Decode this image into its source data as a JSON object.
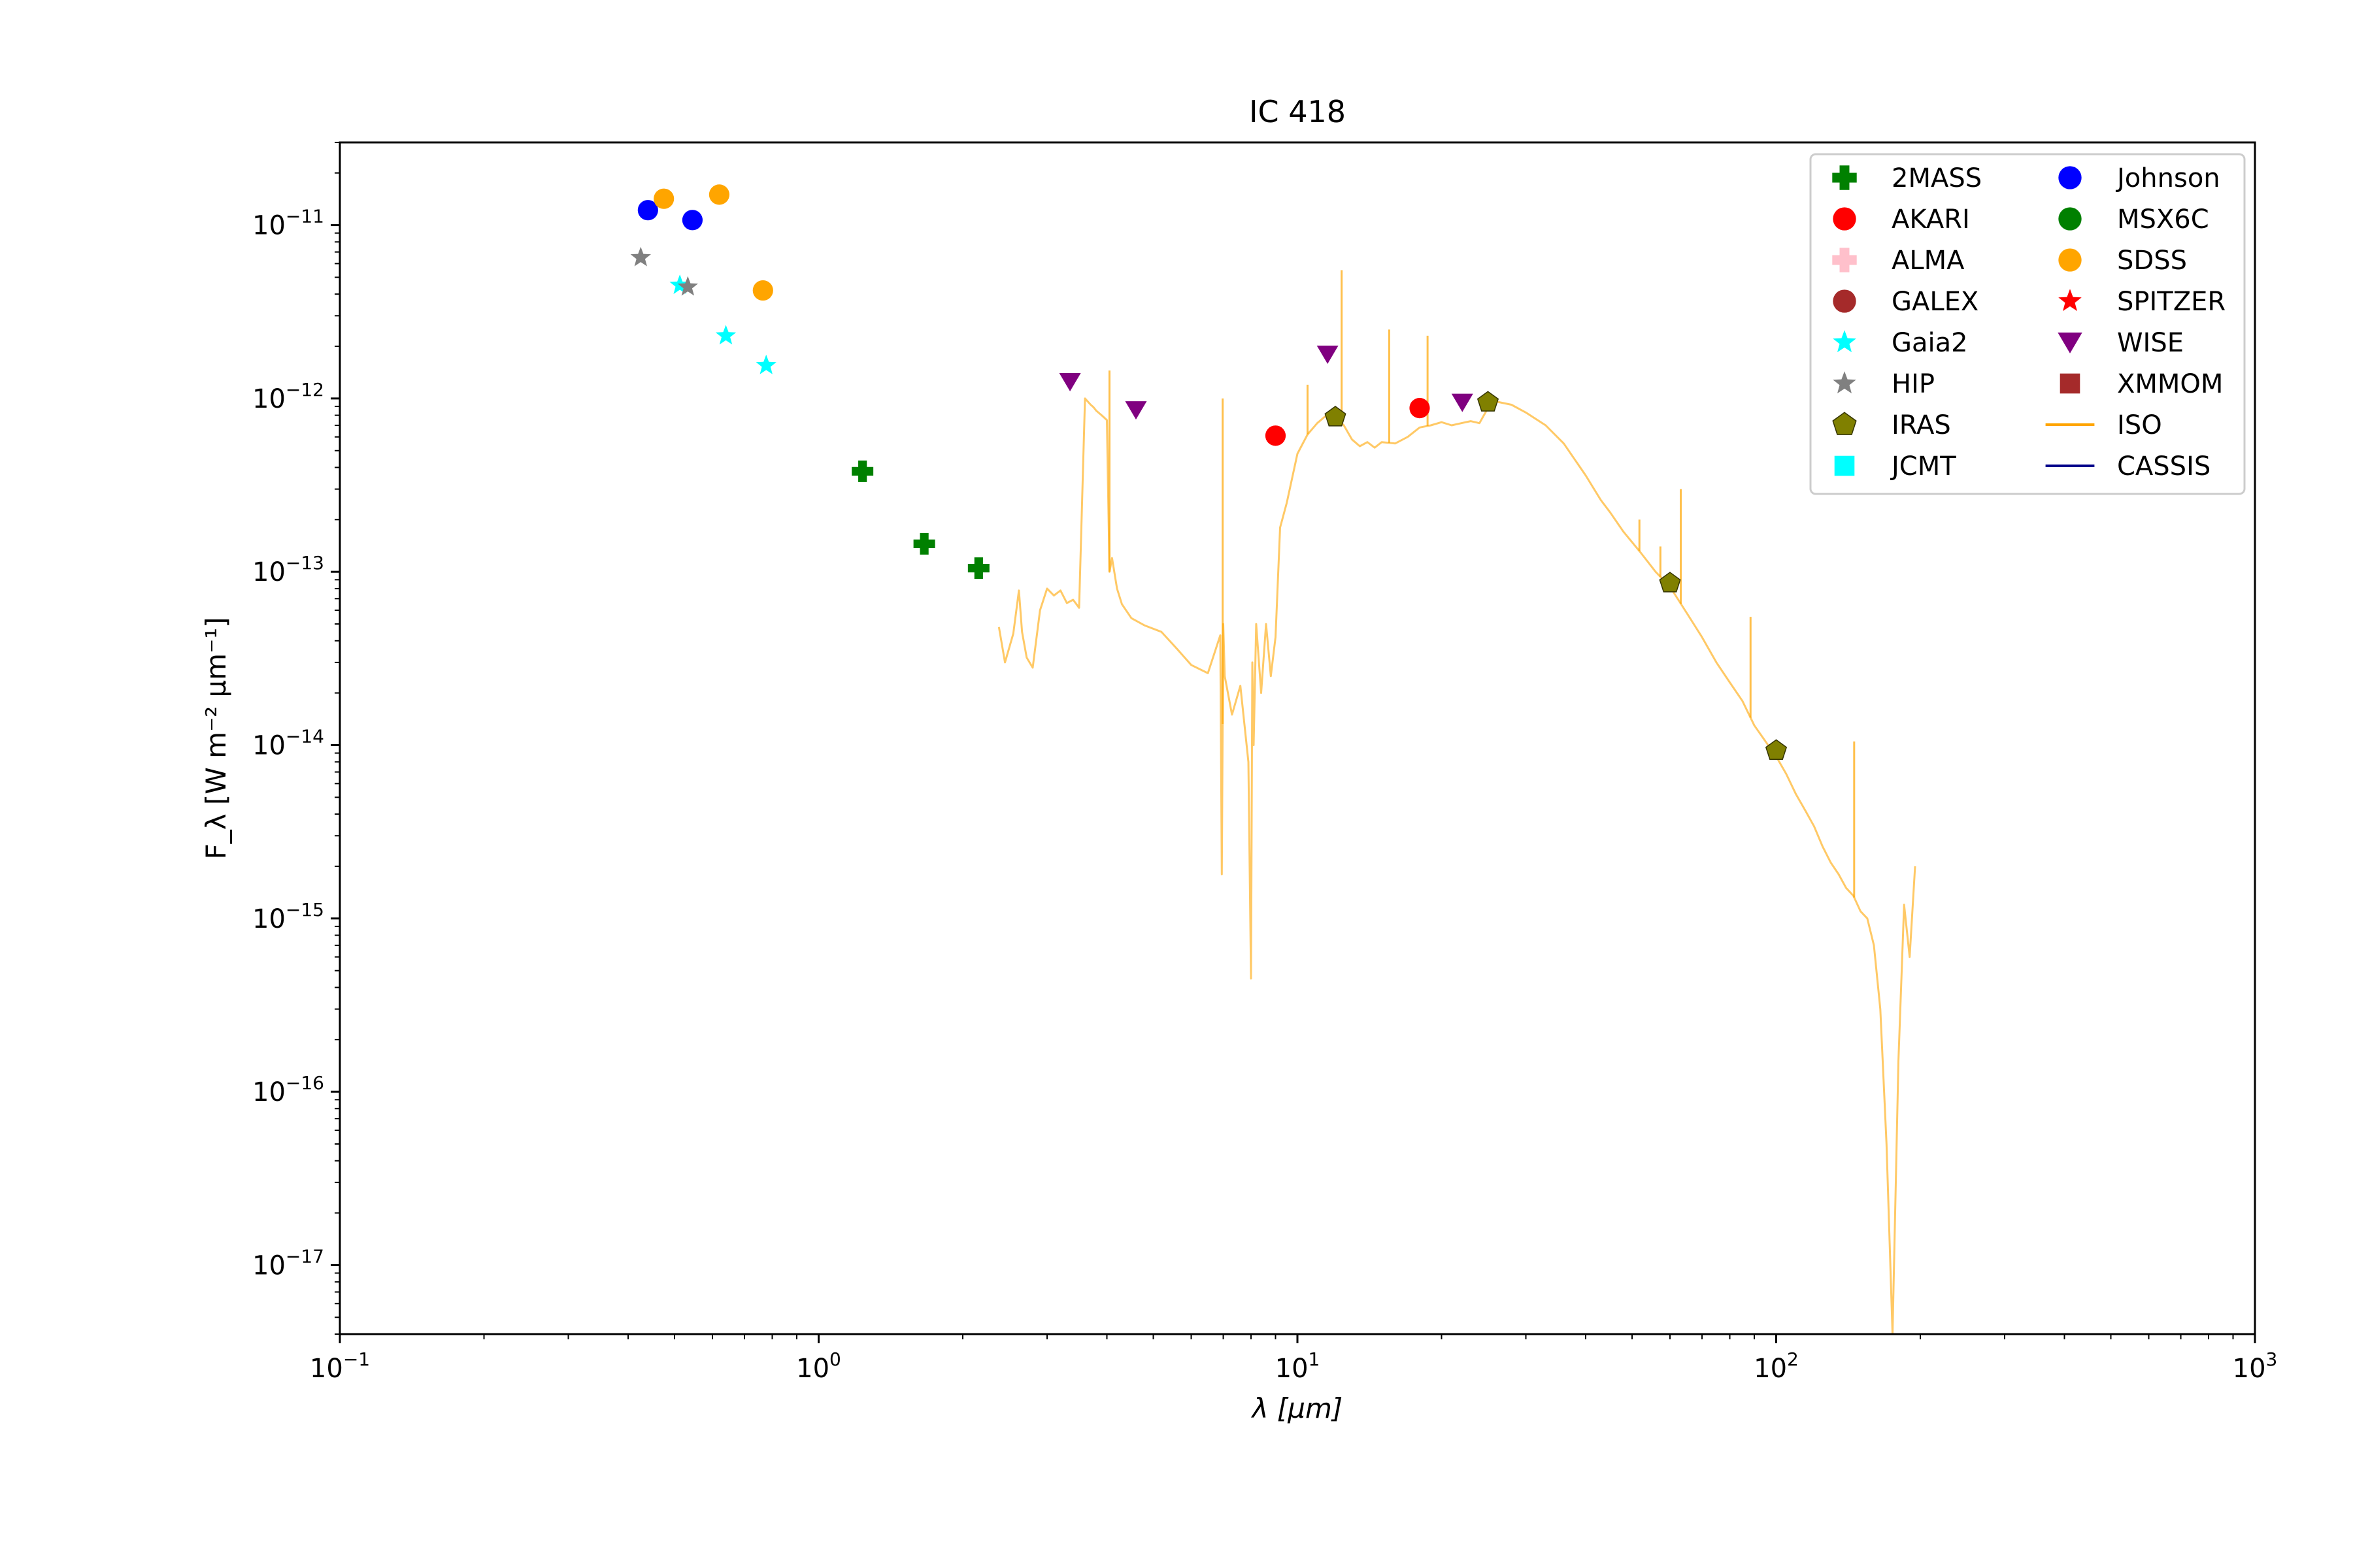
{
  "chart_data": {
    "type": "scatter",
    "title": "IC 418",
    "xlabel_text": "λ [μm]",
    "ylabel_text": "F_λ [W m⁻² μm⁻¹]",
    "x_scale": "log",
    "y_scale": "log",
    "xlim": [
      0.1,
      1000
    ],
    "ylim": [
      4e-18,
      3e-11
    ],
    "grid": false,
    "legend_position": "top-right",
    "x_ticks": [
      {
        "value": 0.1,
        "base": "10",
        "exp": "−1"
      },
      {
        "value": 1,
        "base": "10",
        "exp": "0"
      },
      {
        "value": 10,
        "base": "10",
        "exp": "1"
      },
      {
        "value": 100,
        "base": "10",
        "exp": "2"
      },
      {
        "value": 1000,
        "base": "10",
        "exp": "3"
      }
    ],
    "y_ticks": [
      {
        "value": 1e-17,
        "base": "10",
        "exp": "−17"
      },
      {
        "value": 1e-16,
        "base": "10",
        "exp": "−16"
      },
      {
        "value": 1e-15,
        "base": "10",
        "exp": "−15"
      },
      {
        "value": 1e-14,
        "base": "10",
        "exp": "−14"
      },
      {
        "value": 1e-13,
        "base": "10",
        "exp": "−13"
      },
      {
        "value": 1e-12,
        "base": "10",
        "exp": "−12"
      },
      {
        "value": 1e-11,
        "base": "10",
        "exp": "−11"
      }
    ],
    "legend": [
      {
        "label": "2MASS",
        "color": "#008000",
        "marker": "plus"
      },
      {
        "label": "Johnson",
        "color": "#0000ff",
        "marker": "circle"
      },
      {
        "label": "AKARI",
        "color": "#ff0000",
        "marker": "circle"
      },
      {
        "label": "MSX6C",
        "color": "#008000",
        "marker": "circle"
      },
      {
        "label": "ALMA",
        "color": "#ffc0cb",
        "marker": "plus"
      },
      {
        "label": "SDSS",
        "color": "#ffa500",
        "marker": "circle"
      },
      {
        "label": "GALEX",
        "color": "#a52a2a",
        "marker": "circle"
      },
      {
        "label": "SPITZER",
        "color": "#ff0000",
        "marker": "star"
      },
      {
        "label": "Gaia2",
        "color": "#00ffff",
        "marker": "star"
      },
      {
        "label": "WISE",
        "color": "#800080",
        "marker": "triangle-down"
      },
      {
        "label": "HIP",
        "color": "#808080",
        "marker": "star"
      },
      {
        "label": "XMMOM",
        "color": "#a52a2a",
        "marker": "square"
      },
      {
        "label": "IRAS",
        "color": "#808000",
        "marker": "pentagon"
      },
      {
        "label": "ISO",
        "color": "#ffa500",
        "marker": "line"
      },
      {
        "label": "JCMT",
        "color": "#00ffff",
        "marker": "square"
      },
      {
        "label": "CASSIS",
        "color": "#00008b",
        "marker": "line"
      }
    ],
    "series": [
      {
        "name": "2MASS",
        "marker": "plus",
        "color": "#008000",
        "points": [
          {
            "x": 1.235,
            "y": 3.8e-13
          },
          {
            "x": 1.662,
            "y": 1.45e-13
          },
          {
            "x": 2.159,
            "y": 1.05e-13
          }
        ]
      },
      {
        "name": "Johnson",
        "marker": "circle",
        "color": "#0000ff",
        "points": [
          {
            "x": 0.44,
            "y": 1.22e-11
          },
          {
            "x": 0.545,
            "y": 1.07e-11
          }
        ]
      },
      {
        "name": "AKARI",
        "marker": "circle",
        "color": "#ff0000",
        "points": [
          {
            "x": 9.0,
            "y": 6.1e-13
          },
          {
            "x": 18.0,
            "y": 8.8e-13
          }
        ]
      },
      {
        "name": "SDSS",
        "marker": "circle",
        "color": "#ffa500",
        "points": [
          {
            "x": 0.475,
            "y": 1.42e-11
          },
          {
            "x": 0.62,
            "y": 1.5e-11
          },
          {
            "x": 0.765,
            "y": 4.2e-12
          }
        ]
      },
      {
        "name": "Gaia2",
        "marker": "star",
        "color": "#00ffff",
        "points": [
          {
            "x": 0.513,
            "y": 4.5e-12
          },
          {
            "x": 0.64,
            "y": 2.3e-12
          },
          {
            "x": 0.777,
            "y": 1.55e-12
          }
        ]
      },
      {
        "name": "HIP",
        "marker": "star",
        "color": "#808080",
        "points": [
          {
            "x": 0.425,
            "y": 6.5e-12
          },
          {
            "x": 0.533,
            "y": 4.4e-12
          }
        ]
      },
      {
        "name": "WISE",
        "marker": "triangle-down",
        "color": "#800080",
        "points": [
          {
            "x": 3.35,
            "y": 1.25e-12
          },
          {
            "x": 4.6,
            "y": 8.6e-13
          },
          {
            "x": 11.56,
            "y": 1.8e-12
          },
          {
            "x": 22.1,
            "y": 9.5e-13
          }
        ]
      },
      {
        "name": "IRAS",
        "marker": "pentagon",
        "color": "#808000",
        "points": [
          {
            "x": 12.0,
            "y": 7.8e-13
          },
          {
            "x": 25.0,
            "y": 9.5e-13
          },
          {
            "x": 60.0,
            "y": 8.6e-14
          },
          {
            "x": 100.0,
            "y": 9.3e-15
          }
        ]
      }
    ],
    "iso_spectrum": {
      "name": "ISO",
      "color": "#ffa500",
      "x": [
        2.38,
        2.45,
        2.55,
        2.62,
        2.66,
        2.72,
        2.8,
        2.9,
        3.0,
        3.1,
        3.2,
        3.3,
        3.4,
        3.5,
        3.6,
        3.7,
        3.75,
        3.8,
        3.9,
        4.0,
        4.05,
        4.1,
        4.2,
        4.3,
        4.5,
        4.8,
        5.2,
        5.6,
        6.0,
        6.5,
        6.9,
        6.95,
        7.0,
        7.05,
        7.3,
        7.6,
        7.9,
        8.0,
        8.05,
        8.1,
        8.2,
        8.4,
        8.6,
        8.8,
        9.0,
        9.2,
        9.5,
        10.0,
        10.5,
        11.0,
        11.5,
        12.0,
        12.5,
        13.0,
        13.5,
        14.0,
        14.5,
        15.0,
        16.0,
        17.0,
        18.0,
        19.0,
        20.0,
        21.0,
        22.0,
        23.0,
        24.0,
        25.0,
        26.0,
        28.0,
        30.0,
        33.0,
        36.0,
        40.0,
        43.0,
        45.0,
        48.0,
        52.0,
        56.0,
        60.0,
        65.0,
        70.0,
        75.0,
        80.0,
        85.0,
        90.0,
        95.0,
        100.0,
        105.0,
        110.0,
        115.0,
        120.0,
        125.0,
        130.0,
        135.0,
        140.0,
        145.0,
        150.0,
        155.0,
        160.0,
        165.0,
        170.0,
        175.0,
        180.0,
        185.0,
        190.0,
        195.0
      ],
      "y": [
        4.8e-14,
        3e-14,
        4.4e-14,
        7.8e-14,
        4.5e-14,
        3.2e-14,
        2.8e-14,
        6e-14,
        8e-14,
        7.3e-14,
        7.8e-14,
        6.6e-14,
        6.9e-14,
        6.2e-14,
        1e-12,
        9.2e-13,
        8.9e-13,
        8.5e-13,
        8e-13,
        7.5e-13,
        1e-13,
        1.2e-13,
        8e-14,
        6.5e-14,
        5.4e-14,
        4.9e-14,
        4.5e-14,
        3.6e-14,
        2.9e-14,
        2.6e-14,
        4.3e-14,
        1.8e-15,
        5e-14,
        2.5e-14,
        1.5e-14,
        2.2e-14,
        8e-15,
        4.5e-16,
        3e-14,
        1e-14,
        5e-14,
        2e-14,
        5e-14,
        2.5e-14,
        4.2e-14,
        1.8e-13,
        2.5e-13,
        4.8e-13,
        6.2e-13,
        7.2e-13,
        8e-13,
        7.8e-13,
        7e-13,
        5.8e-13,
        5.3e-13,
        5.6e-13,
        5.2e-13,
        5.6e-13,
        5.5e-13,
        6e-13,
        6.8e-13,
        7e-13,
        7.3e-13,
        7e-13,
        7.2e-13,
        7.4e-13,
        7.2e-13,
        8.8e-13,
        9.6e-13,
        9.2e-13,
        8.3e-13,
        7e-13,
        5.5e-13,
        3.6e-13,
        2.6e-13,
        2.2e-13,
        1.7e-13,
        1.3e-13,
        1e-13,
        8.2e-14,
        5.8e-14,
        4.2e-14,
        3e-14,
        2.3e-14,
        1.8e-14,
        1.3e-14,
        1.05e-14,
        8.6e-15,
        6.8e-15,
        5.2e-15,
        4.2e-15,
        3.4e-15,
        2.6e-15,
        2.1e-15,
        1.8e-15,
        1.5e-15,
        1.35e-15,
        1.1e-15,
        1e-15,
        7e-16,
        3e-16,
        5e-17,
        4e-18,
        1.5e-16,
        1.2e-15,
        6e-16,
        2e-15
      ],
      "spikes": [
        {
          "x": 4.05,
          "top": 1.45e-12
        },
        {
          "x": 6.98,
          "top": 1e-12
        },
        {
          "x": 10.5,
          "top": 1.2e-12
        },
        {
          "x": 12.37,
          "top": 5.5e-12
        },
        {
          "x": 15.55,
          "top": 2.5e-12
        },
        {
          "x": 18.7,
          "top": 2.3e-12
        },
        {
          "x": 51.8,
          "top": 2e-13
        },
        {
          "x": 57.3,
          "top": 1.4e-13
        },
        {
          "x": 63.2,
          "top": 3e-13
        },
        {
          "x": 88.4,
          "top": 5.5e-14
        },
        {
          "x": 145.5,
          "top": 1.05e-14
        }
      ]
    }
  }
}
